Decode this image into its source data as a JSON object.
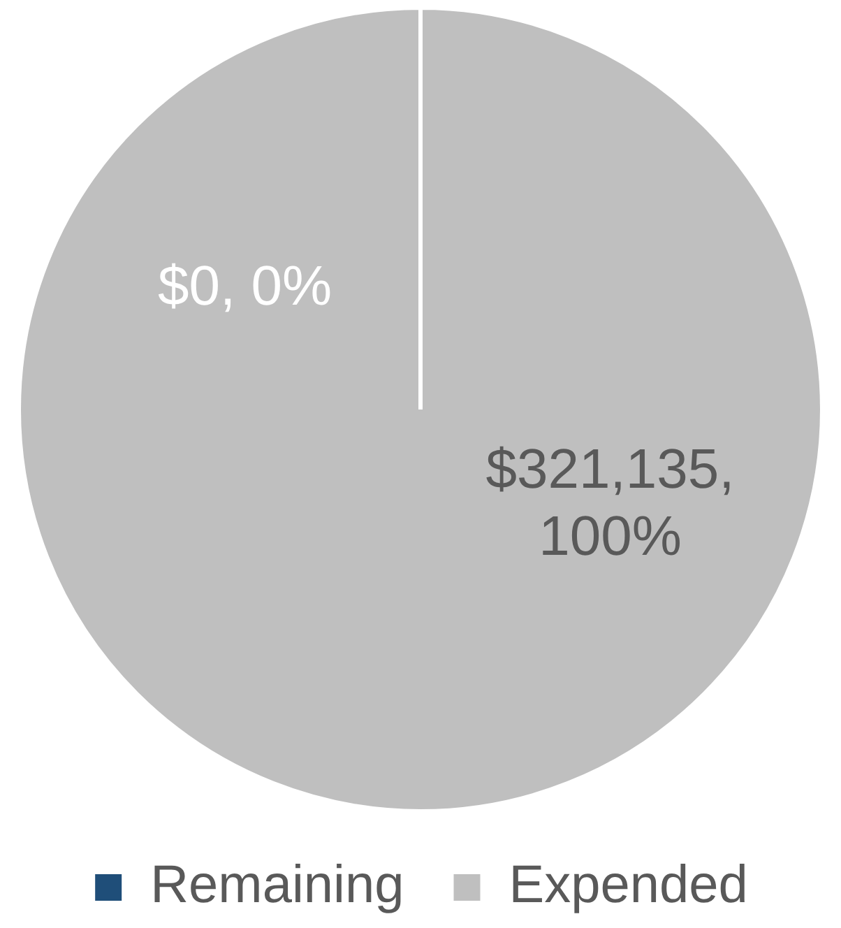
{
  "chart_data": {
    "type": "pie",
    "categories": [
      "Remaining",
      "Expended"
    ],
    "values": [
      0,
      321135
    ],
    "colors": [
      "#1f4e79",
      "#bfbfbf"
    ],
    "value_labels": [
      "$0, 0%",
      "$321,135, 100%"
    ],
    "legend": "bottom"
  }
}
